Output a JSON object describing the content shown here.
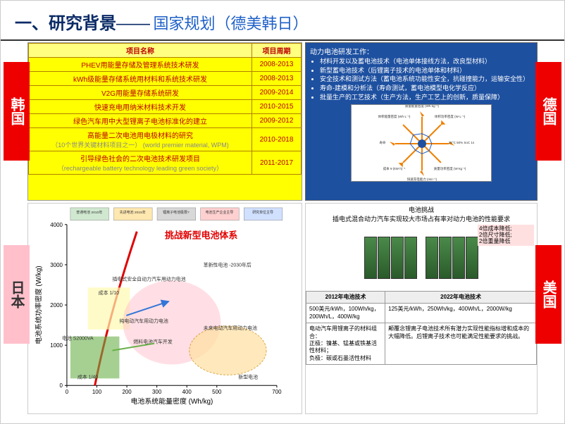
{
  "header": {
    "main": "一、研究背景",
    "dash": "——",
    "sub": "国家规划（德美韩日）",
    "main_color": "#0a2a66",
    "sub_color": "#1e60c8"
  },
  "countries": {
    "korea": "韩国",
    "japan": "日本",
    "germany": "德国",
    "usa": "美国"
  },
  "korea": {
    "headers": [
      "项目名称",
      "项目周期"
    ],
    "rows": [
      {
        "name": "PHEV用能量存储及管理系统技术研发",
        "period": "2008-2013"
      },
      {
        "name": "kWh级能量存储系统用材料和系统技术研发",
        "period": "2008-2013"
      },
      {
        "name": "V2G用能量存储系统研发",
        "period": "2009-2014"
      },
      {
        "name": "快速充电用纳米材料技术开发",
        "period": "2010-2015"
      },
      {
        "name": "绿色汽车用中大型锂离子电池标准化的建立",
        "period": "2009-2012"
      },
      {
        "name": "高能量二次电池用电极材料的研究",
        "sub": "（10个世界关键材料项目之一）\n(world premier material, WPM)",
        "period": "2010-2018"
      },
      {
        "name": "引导绿色社会的二次电池技术研发项目",
        "sub": "（rechargeable battery technology leading green society）",
        "period": "2011-2017"
      }
    ]
  },
  "germany": {
    "title": "动力电池研发工作：",
    "bullets": [
      "材料开发以及蓄电池技术（电池单体接线方法，改良型材料）",
      "新型蓄电池技术（后锂离子技术的电池单体和材料）",
      "安全技术和测试方法（蓄电池系统功能性安全，抗碰撞能力，运输安全性）",
      "寿命-建模和分析法（寿命测试，蓄电池模型电化学反应）",
      "批量生产的工艺技术（生产方法，生产工艺上的创新，质量保障）"
    ],
    "chart": {
      "axes": [
        "质量能量密度 (Wh·kg⁻¹)",
        "体积功率密度 (W·L⁻¹)",
        "25°C 50% SoC 1s",
        "质量功率密度 (W·kg⁻¹)",
        "快速充电能力 (min⁻¹)",
        "成本 ¥·(kW·h)⁻¹",
        "寿命",
        "体积能量密度 (Wh·L⁻¹)"
      ],
      "colors": {
        "spokes": "#f08000",
        "outline": "#2060c0",
        "center": "#1e50a0"
      }
    }
  },
  "japan": {
    "title_red": "挑战新型电池体系",
    "y_label": "电池系统功率密度 (W/kg)",
    "x_label": "电池系统能量密度 (Wh/kg)",
    "y_ticks": [
      0,
      1000,
      2000,
      3000,
      4000
    ],
    "x_ticks": [
      0,
      100,
      200,
      300,
      400,
      500,
      700
    ],
    "legend": [
      "普通电池 2010年",
      "先进电池 2015年",
      "锂离子电池极限?",
      "电池生产企业主导",
      "研究单位主导"
    ],
    "annotations": [
      "插电式安全自动力汽车用动力电池",
      "纯电动汽车用动力电池",
      "燃料电池汽车开发",
      "革新性电池 -2030年后",
      "未来电动汽车用动力电池",
      "新型电池",
      "成本 1/40",
      "成本 1/10",
      "电池 S2000VA"
    ],
    "colors": {
      "red": "#e00000",
      "green": "#6ab04a",
      "blue": "#3276d8",
      "pink": "#ffc0cb",
      "yellow": "#fff9b0",
      "gray": "#888"
    }
  },
  "usa": {
    "top_line1": "电池挑战",
    "top_line2": "插电式混合动力汽车实现较大市场占有率对动力电池的性能要求",
    "note_lines": [
      "4倍成本降低;",
      "2倍尺寸降低;",
      "2倍重量降低"
    ],
    "headers": [
      "2012年电池技术",
      "2022年电池技术"
    ],
    "row1": [
      "500美元/kWh，100Wh/kg，200Wh/L，400W/kg",
      "125美元/kWh，250Wh/kg，400Wh/L，2000W/kg"
    ],
    "row2": [
      "电动汽车用锂离子的材料组合：\n正极：镍基、锰基或铁基活性材料；\n负极：碳或石墨活性材料",
      "颠覆念锂离子电池技术所有潜力实现性能指标增和成本的大幅降低。后锂离子技术也可能满足性能要求的挑战。"
    ],
    "cell_color": "#4a8a4a"
  }
}
